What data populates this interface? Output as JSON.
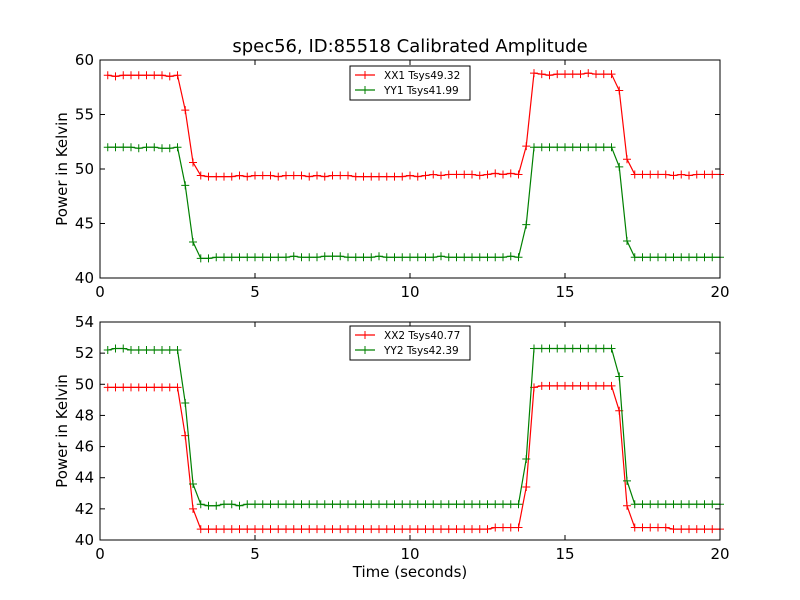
{
  "figure": {
    "title": "spec56, ID:85518 Calibrated Amplitude"
  },
  "chart_data": [
    {
      "type": "line",
      "title": "spec56, ID:85518 Calibrated Amplitude",
      "xlabel": "",
      "ylabel": "Power in Kelvin",
      "xlim": [
        0,
        20
      ],
      "ylim": [
        40,
        60
      ],
      "xticks": [
        0,
        5,
        10,
        15,
        20
      ],
      "yticks": [
        40,
        45,
        50,
        55,
        60
      ],
      "xtick_labels": [
        "0",
        "5",
        "10",
        "15",
        "20"
      ],
      "ytick_labels": [
        "40",
        "45",
        "50",
        "55",
        "60"
      ],
      "grid": false,
      "legend": "top-center",
      "series": [
        {
          "name": "XX1 Tsys49.32",
          "color": "#ff0000",
          "x": [
            0.25,
            0.5,
            0.75,
            1.0,
            1.25,
            1.5,
            1.75,
            2.0,
            2.25,
            2.5,
            2.75,
            3.0,
            3.25,
            3.5,
            3.75,
            4.0,
            4.25,
            4.5,
            4.75,
            5.0,
            5.25,
            5.5,
            5.75,
            6.0,
            6.25,
            6.5,
            6.75,
            7.0,
            7.25,
            7.5,
            7.75,
            8.0,
            8.25,
            8.5,
            8.75,
            9.0,
            9.25,
            9.5,
            9.75,
            10.0,
            10.25,
            10.5,
            10.75,
            11.0,
            11.25,
            11.5,
            11.75,
            12.0,
            12.25,
            12.5,
            12.75,
            13.0,
            13.25,
            13.5,
            13.75,
            14.0,
            14.25,
            14.5,
            14.75,
            15.0,
            15.25,
            15.5,
            15.75,
            16.0,
            16.25,
            16.5,
            16.75,
            17.0,
            17.25,
            17.5,
            17.75,
            18.0,
            18.25,
            18.5,
            18.75,
            19.0,
            19.25,
            19.5,
            19.75,
            20.0
          ],
          "values": [
            58.6,
            58.5,
            58.6,
            58.6,
            58.6,
            58.6,
            58.6,
            58.6,
            58.5,
            58.6,
            55.4,
            50.6,
            49.4,
            49.3,
            49.3,
            49.3,
            49.3,
            49.4,
            49.3,
            49.4,
            49.4,
            49.4,
            49.3,
            49.4,
            49.4,
            49.4,
            49.3,
            49.4,
            49.3,
            49.4,
            49.4,
            49.4,
            49.3,
            49.3,
            49.3,
            49.3,
            49.3,
            49.3,
            49.3,
            49.4,
            49.3,
            49.4,
            49.5,
            49.4,
            49.5,
            49.5,
            49.5,
            49.5,
            49.4,
            49.5,
            49.6,
            49.5,
            49.6,
            49.5,
            52.1,
            58.8,
            58.7,
            58.6,
            58.7,
            58.7,
            58.7,
            58.7,
            58.8,
            58.7,
            58.7,
            58.7,
            57.2,
            50.9,
            49.5,
            49.5,
            49.5,
            49.5,
            49.5,
            49.4,
            49.5,
            49.4,
            49.5,
            49.5,
            49.5,
            49.5
          ]
        },
        {
          "name": "YY1 Tsys41.99",
          "color": "#008000",
          "x": [
            0.25,
            0.5,
            0.75,
            1.0,
            1.25,
            1.5,
            1.75,
            2.0,
            2.25,
            2.5,
            2.75,
            3.0,
            3.25,
            3.5,
            3.75,
            4.0,
            4.25,
            4.5,
            4.75,
            5.0,
            5.25,
            5.5,
            5.75,
            6.0,
            6.25,
            6.5,
            6.75,
            7.0,
            7.25,
            7.5,
            7.75,
            8.0,
            8.25,
            8.5,
            8.75,
            9.0,
            9.25,
            9.5,
            9.75,
            10.0,
            10.25,
            10.5,
            10.75,
            11.0,
            11.25,
            11.5,
            11.75,
            12.0,
            12.25,
            12.5,
            12.75,
            13.0,
            13.25,
            13.5,
            13.75,
            14.0,
            14.25,
            14.5,
            14.75,
            15.0,
            15.25,
            15.5,
            15.75,
            16.0,
            16.25,
            16.5,
            16.75,
            17.0,
            17.25,
            17.5,
            17.75,
            18.0,
            18.25,
            18.5,
            18.75,
            19.0,
            19.25,
            19.5,
            19.75,
            20.0
          ],
          "values": [
            52.0,
            52.0,
            52.0,
            52.0,
            51.9,
            52.0,
            52.0,
            51.9,
            51.9,
            52.0,
            48.5,
            43.3,
            41.8,
            41.8,
            41.9,
            41.9,
            41.9,
            41.9,
            41.9,
            41.9,
            41.9,
            41.9,
            41.9,
            41.9,
            42.0,
            41.9,
            41.9,
            41.9,
            42.0,
            42.0,
            42.0,
            41.9,
            41.9,
            41.9,
            41.9,
            42.0,
            41.9,
            41.9,
            41.9,
            41.9,
            41.9,
            41.9,
            41.9,
            42.0,
            41.9,
            41.9,
            41.9,
            41.9,
            41.9,
            41.9,
            41.9,
            41.9,
            42.0,
            41.9,
            44.9,
            52.0,
            52.0,
            52.0,
            52.0,
            52.0,
            52.0,
            52.0,
            52.0,
            52.0,
            52.0,
            52.0,
            50.2,
            43.4,
            41.9,
            41.9,
            41.9,
            41.9,
            41.9,
            41.9,
            41.9,
            41.9,
            41.9,
            41.9,
            41.9,
            41.9
          ]
        }
      ]
    },
    {
      "type": "line",
      "title": "",
      "xlabel": "Time (seconds)",
      "ylabel": "Power in Kelvin",
      "xlim": [
        0,
        20
      ],
      "ylim": [
        40,
        54
      ],
      "xticks": [
        0,
        5,
        10,
        15,
        20
      ],
      "yticks": [
        40,
        42,
        44,
        46,
        48,
        50,
        52,
        54
      ],
      "xtick_labels": [
        "0",
        "5",
        "10",
        "15",
        "20"
      ],
      "ytick_labels": [
        "40",
        "42",
        "44",
        "46",
        "48",
        "50",
        "52",
        "54"
      ],
      "grid": false,
      "legend": "top-center",
      "series": [
        {
          "name": "XX2 Tsys40.77",
          "color": "#ff0000",
          "x": [
            0.25,
            0.5,
            0.75,
            1.0,
            1.25,
            1.5,
            1.75,
            2.0,
            2.25,
            2.5,
            2.75,
            3.0,
            3.25,
            3.5,
            3.75,
            4.0,
            4.25,
            4.5,
            4.75,
            5.0,
            5.25,
            5.5,
            5.75,
            6.0,
            6.25,
            6.5,
            6.75,
            7.0,
            7.25,
            7.5,
            7.75,
            8.0,
            8.25,
            8.5,
            8.75,
            9.0,
            9.25,
            9.5,
            9.75,
            10.0,
            10.25,
            10.5,
            10.75,
            11.0,
            11.25,
            11.5,
            11.75,
            12.0,
            12.25,
            12.5,
            12.75,
            13.0,
            13.25,
            13.5,
            13.75,
            14.0,
            14.25,
            14.5,
            14.75,
            15.0,
            15.25,
            15.5,
            15.75,
            16.0,
            16.25,
            16.5,
            16.75,
            17.0,
            17.25,
            17.5,
            17.75,
            18.0,
            18.25,
            18.5,
            18.75,
            19.0,
            19.25,
            19.5,
            19.75,
            20.0
          ],
          "values": [
            49.8,
            49.8,
            49.8,
            49.8,
            49.8,
            49.8,
            49.8,
            49.8,
            49.8,
            49.8,
            46.7,
            42.0,
            40.7,
            40.7,
            40.7,
            40.7,
            40.7,
            40.7,
            40.7,
            40.7,
            40.7,
            40.7,
            40.7,
            40.7,
            40.7,
            40.7,
            40.7,
            40.7,
            40.7,
            40.7,
            40.7,
            40.7,
            40.7,
            40.7,
            40.7,
            40.7,
            40.7,
            40.7,
            40.7,
            40.7,
            40.7,
            40.7,
            40.7,
            40.7,
            40.7,
            40.7,
            40.7,
            40.7,
            40.7,
            40.7,
            40.8,
            40.8,
            40.8,
            40.8,
            43.4,
            49.8,
            49.9,
            49.9,
            49.9,
            49.9,
            49.9,
            49.9,
            49.9,
            49.9,
            49.9,
            49.9,
            48.3,
            42.2,
            40.8,
            40.8,
            40.8,
            40.8,
            40.8,
            40.7,
            40.7,
            40.7,
            40.7,
            40.7,
            40.7,
            40.7
          ]
        },
        {
          "name": "YY2 Tsys42.39",
          "color": "#008000",
          "x": [
            0.25,
            0.5,
            0.75,
            1.0,
            1.25,
            1.5,
            1.75,
            2.0,
            2.25,
            2.5,
            2.75,
            3.0,
            3.25,
            3.5,
            3.75,
            4.0,
            4.25,
            4.5,
            4.75,
            5.0,
            5.25,
            5.5,
            5.75,
            6.0,
            6.25,
            6.5,
            6.75,
            7.0,
            7.25,
            7.5,
            7.75,
            8.0,
            8.25,
            8.5,
            8.75,
            9.0,
            9.25,
            9.5,
            9.75,
            10.0,
            10.25,
            10.5,
            10.75,
            11.0,
            11.25,
            11.5,
            11.75,
            12.0,
            12.25,
            12.5,
            12.75,
            13.0,
            13.25,
            13.5,
            13.75,
            14.0,
            14.25,
            14.5,
            14.75,
            15.0,
            15.25,
            15.5,
            15.75,
            16.0,
            16.25,
            16.5,
            16.75,
            17.0,
            17.25,
            17.5,
            17.75,
            18.0,
            18.25,
            18.5,
            18.75,
            19.0,
            19.25,
            19.5,
            19.75,
            20.0
          ],
          "values": [
            52.2,
            52.3,
            52.3,
            52.2,
            52.2,
            52.2,
            52.2,
            52.2,
            52.2,
            52.2,
            48.8,
            43.6,
            42.3,
            42.2,
            42.2,
            42.3,
            42.3,
            42.2,
            42.3,
            42.3,
            42.3,
            42.3,
            42.3,
            42.3,
            42.3,
            42.3,
            42.3,
            42.3,
            42.3,
            42.3,
            42.3,
            42.3,
            42.3,
            42.3,
            42.3,
            42.3,
            42.3,
            42.3,
            42.3,
            42.3,
            42.3,
            42.3,
            42.3,
            42.3,
            42.3,
            42.3,
            42.3,
            42.3,
            42.3,
            42.3,
            42.3,
            42.3,
            42.3,
            42.3,
            45.2,
            52.3,
            52.3,
            52.3,
            52.3,
            52.3,
            52.3,
            52.3,
            52.3,
            52.3,
            52.3,
            52.3,
            50.5,
            43.8,
            42.3,
            42.3,
            42.3,
            42.3,
            42.3,
            42.3,
            42.3,
            42.3,
            42.3,
            42.3,
            42.3,
            42.3
          ]
        }
      ]
    }
  ]
}
